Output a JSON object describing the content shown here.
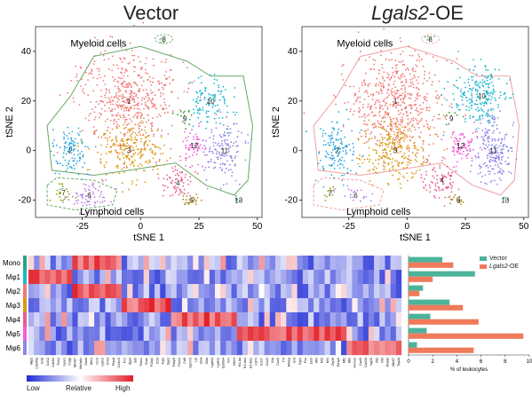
{
  "panels": [
    {
      "title": "Vector",
      "title_italic": "",
      "outline_color": "#66aa66",
      "myeloid_label": "Myeloid cells",
      "lymphoid_label": "Lymphoid cells",
      "xlabel": "tSNE 1",
      "ylabel": "tSNE 2"
    },
    {
      "title": "-OE",
      "title_italic": "Lgals2",
      "outline_color": "#f0a0a0",
      "myeloid_label": "Myeloid cells",
      "lymphoid_label": "Lymphoid cells",
      "xlabel": "tSNE 1",
      "ylabel": "tSNE 2"
    }
  ],
  "chart_data": [
    {
      "type": "scatter",
      "title": "Vector",
      "xlabel": "tSNE 1",
      "ylabel": "tSNE 2",
      "xticks": [
        -25,
        0,
        25,
        50
      ],
      "yticks": [
        -20,
        0,
        20,
        40
      ],
      "xlim": [
        -45,
        52
      ],
      "ylim": [
        -27,
        50
      ],
      "clusters": [
        {
          "id": "1",
          "color": "#f07a78",
          "center": [
            -5,
            20
          ],
          "spread": [
            10,
            10
          ],
          "n": 520
        },
        {
          "id": "2",
          "color": "#2aa7dc",
          "center": [
            -30,
            0
          ],
          "spread": [
            4,
            5
          ],
          "n": 110
        },
        {
          "id": "3",
          "color": "#d99a14",
          "center": [
            -5,
            0
          ],
          "spread": [
            7,
            6
          ],
          "n": 240
        },
        {
          "id": "4",
          "color": "#e65d93",
          "center": [
            16,
            -13
          ],
          "spread": [
            4,
            4
          ],
          "n": 70
        },
        {
          "id": "5",
          "color": "#a68c1c",
          "center": [
            22,
            -20
          ],
          "spread": [
            2,
            1.5
          ],
          "n": 25
        },
        {
          "id": "6",
          "color": "#b77be6",
          "center": [
            -22,
            -18
          ],
          "spread": [
            5,
            3
          ],
          "n": 70
        },
        {
          "id": "7",
          "color": "#88a300",
          "center": [
            -33,
            -17
          ],
          "spread": [
            2,
            2
          ],
          "n": 22
        },
        {
          "id": "8",
          "color": "#66bb66",
          "center": [
            10,
            45
          ],
          "spread": [
            1.5,
            0.8
          ],
          "n": 6
        },
        {
          "id": "9",
          "color": "#33a033",
          "center": [
            19,
            13
          ],
          "spread": [
            2,
            2
          ],
          "n": 15
        },
        {
          "id": "10",
          "color": "#1cb6cf",
          "center": [
            30,
            20
          ],
          "spread": [
            5,
            5
          ],
          "n": 110
        },
        {
          "id": "11",
          "color": "#8e87e8",
          "center": [
            36,
            0
          ],
          "spread": [
            4,
            7
          ],
          "n": 140
        },
        {
          "id": "12",
          "color": "#f25cd9",
          "center": [
            23,
            2
          ],
          "spread": [
            3,
            3
          ],
          "n": 60
        },
        {
          "id": "13",
          "color": "#29a386",
          "center": [
            42,
            -20
          ],
          "spread": [
            1,
            1
          ],
          "n": 4
        }
      ]
    },
    {
      "type": "scatter",
      "title": "Lgals2-OE",
      "xlabel": "tSNE 1",
      "ylabel": "tSNE 2",
      "xticks": [
        -25,
        0,
        25,
        50
      ],
      "yticks": [
        -20,
        0,
        20,
        40
      ],
      "xlim": [
        -45,
        52
      ],
      "ylim": [
        -27,
        50
      ],
      "clusters": [
        {
          "id": "1",
          "color": "#f07a78",
          "center": [
            -5,
            20
          ],
          "spread": [
            10,
            10
          ],
          "n": 560
        },
        {
          "id": "2",
          "color": "#2aa7dc",
          "center": [
            -30,
            0
          ],
          "spread": [
            4,
            6
          ],
          "n": 140
        },
        {
          "id": "3",
          "color": "#d99a14",
          "center": [
            -5,
            0
          ],
          "spread": [
            7,
            6
          ],
          "n": 260
        },
        {
          "id": "4",
          "color": "#e65d93",
          "center": [
            15,
            -12
          ],
          "spread": [
            4,
            4
          ],
          "n": 80
        },
        {
          "id": "5",
          "color": "#a68c1c",
          "center": [
            22,
            -20
          ],
          "spread": [
            2,
            1.5
          ],
          "n": 20
        },
        {
          "id": "6",
          "color": "#b77be6",
          "center": [
            -22,
            -18
          ],
          "spread": [
            4,
            2
          ],
          "n": 20
        },
        {
          "id": "7",
          "color": "#88a300",
          "center": [
            -33,
            -17
          ],
          "spread": [
            1.5,
            1.5
          ],
          "n": 10
        },
        {
          "id": "8",
          "color": "#66bb66",
          "center": [
            10,
            45
          ],
          "spread": [
            1.5,
            0.8
          ],
          "n": 5
        },
        {
          "id": "9",
          "color": "#33a033",
          "center": [
            19,
            13
          ],
          "spread": [
            2,
            2
          ],
          "n": 10
        },
        {
          "id": "10",
          "color": "#1cb6cf",
          "center": [
            32,
            22
          ],
          "spread": [
            6,
            6
          ],
          "n": 220
        },
        {
          "id": "11",
          "color": "#8e87e8",
          "center": [
            37,
            0
          ],
          "spread": [
            4,
            7
          ],
          "n": 200
        },
        {
          "id": "12",
          "color": "#f25cd9",
          "center": [
            23,
            2
          ],
          "spread": [
            3,
            3
          ],
          "n": 80
        },
        {
          "id": "13",
          "color": "#29a386",
          "center": [
            42,
            -20
          ],
          "spread": [
            1,
            1
          ],
          "n": 3
        }
      ]
    },
    {
      "type": "heatmap",
      "rows": [
        "Mono",
        "Mφ1",
        "Mφ2",
        "Mφ3",
        "Mφ4",
        "Mφ5",
        "Mφ6"
      ],
      "row_colors": [
        "#29a386",
        "#1cb6cf",
        "#f07a78",
        "#d99a14",
        "#e65d93",
        "#f25cd9",
        "#8e87e8"
      ],
      "columns": [
        "Mgl2",
        "Cd209a",
        "Ccl8",
        "Ccl12",
        "Cd163",
        "Folr2",
        "Lyve1",
        "C1qa",
        "Ms4a7",
        "Ms4a6c",
        "Gas6",
        "Mrc1",
        "Ccr2",
        "Ly6c2",
        "Chil3",
        "Plac8",
        "Cx3cr1",
        "Fn1",
        "Itga4",
        "Sell",
        "Thbs1",
        "Vcan",
        "F13a1",
        "Ccl9",
        "Arg1",
        "Spp1",
        "Fabp5",
        "Trem2",
        "Cd9",
        "Gpnmb",
        "Lpl",
        "Ctsd",
        "Ctsb",
        "Lgals3",
        "Lgals1",
        "S100a4",
        "Vim",
        "Ifitm3",
        "H2-Aa",
        "H2-Ab1",
        "H2-Eb1",
        "Cd74",
        "Ccl17",
        "Ccl22",
        "Il1b",
        "Cxcl2",
        "Tnf",
        "Nfkbia",
        "Ier3",
        "Egr1",
        "Fos",
        "Junb",
        "Atf3",
        "Klf2",
        "Klf4",
        "Zfp36",
        "Dusp1",
        "Mt1",
        "Mt2",
        "Hmox1",
        "Cxcl9",
        "Cxcl10",
        "Isg15",
        "Ifit1",
        "Ifit3",
        "Rsad2",
        "Mki67",
        "Top2a"
      ],
      "colorscale": [
        "#1f2bd6",
        "#ffffff",
        "#e3202a"
      ],
      "legend_low": "Low",
      "legend_mid": "Relative",
      "legend_high": "High"
    },
    {
      "type": "bar",
      "orientation": "horizontal",
      "categories": [
        "Mono",
        "Mφ1",
        "Mφ2",
        "Mφ3",
        "Mφ4",
        "Mφ5",
        "Mφ6"
      ],
      "series": [
        {
          "name": "Vector",
          "italic": "",
          "color": "#4cb39a",
          "values": [
            2.8,
            5.5,
            1.2,
            3.4,
            1.8,
            1.5,
            0.7
          ]
        },
        {
          "name": "-OE",
          "italic": "Lgals2",
          "color": "#f07a5a",
          "values": [
            3.7,
            2.0,
            0.9,
            4.5,
            5.8,
            9.5,
            5.4
          ]
        }
      ],
      "xlabel": "% of leukocytes",
      "xticks": [
        0,
        2,
        4,
        6,
        8,
        10
      ],
      "xlim": [
        0,
        10
      ]
    }
  ]
}
